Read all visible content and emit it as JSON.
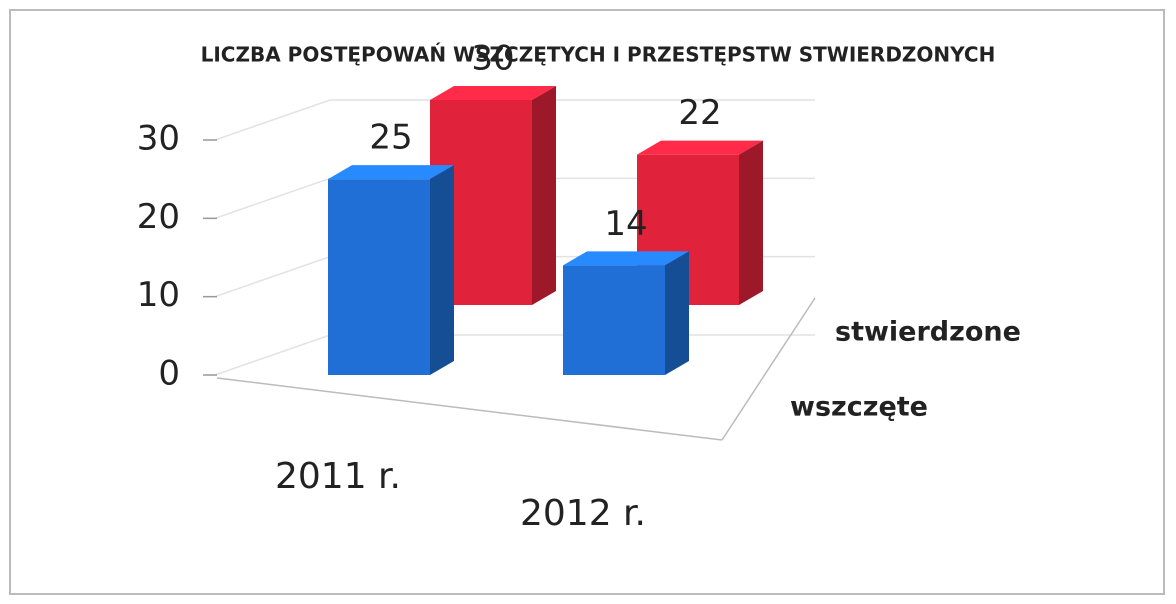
{
  "chart_data": {
    "type": "bar3d",
    "title": "LICZBA POSTĘPOWAŃ WSZCZĘTYCH I PRZESTĘPSTW STWIERDZONYCH",
    "categories": [
      "2011 r.",
      "2012 r."
    ],
    "series": [
      {
        "name": "wszczęte",
        "color": "#1f6fd6",
        "values": [
          25,
          14
        ]
      },
      {
        "name": "stwierdzone",
        "color": "#e0223a",
        "values": [
          30,
          22
        ]
      }
    ],
    "ylim": [
      0,
      30
    ],
    "yticks": [
      0,
      10,
      20,
      30
    ],
    "grid": true
  }
}
